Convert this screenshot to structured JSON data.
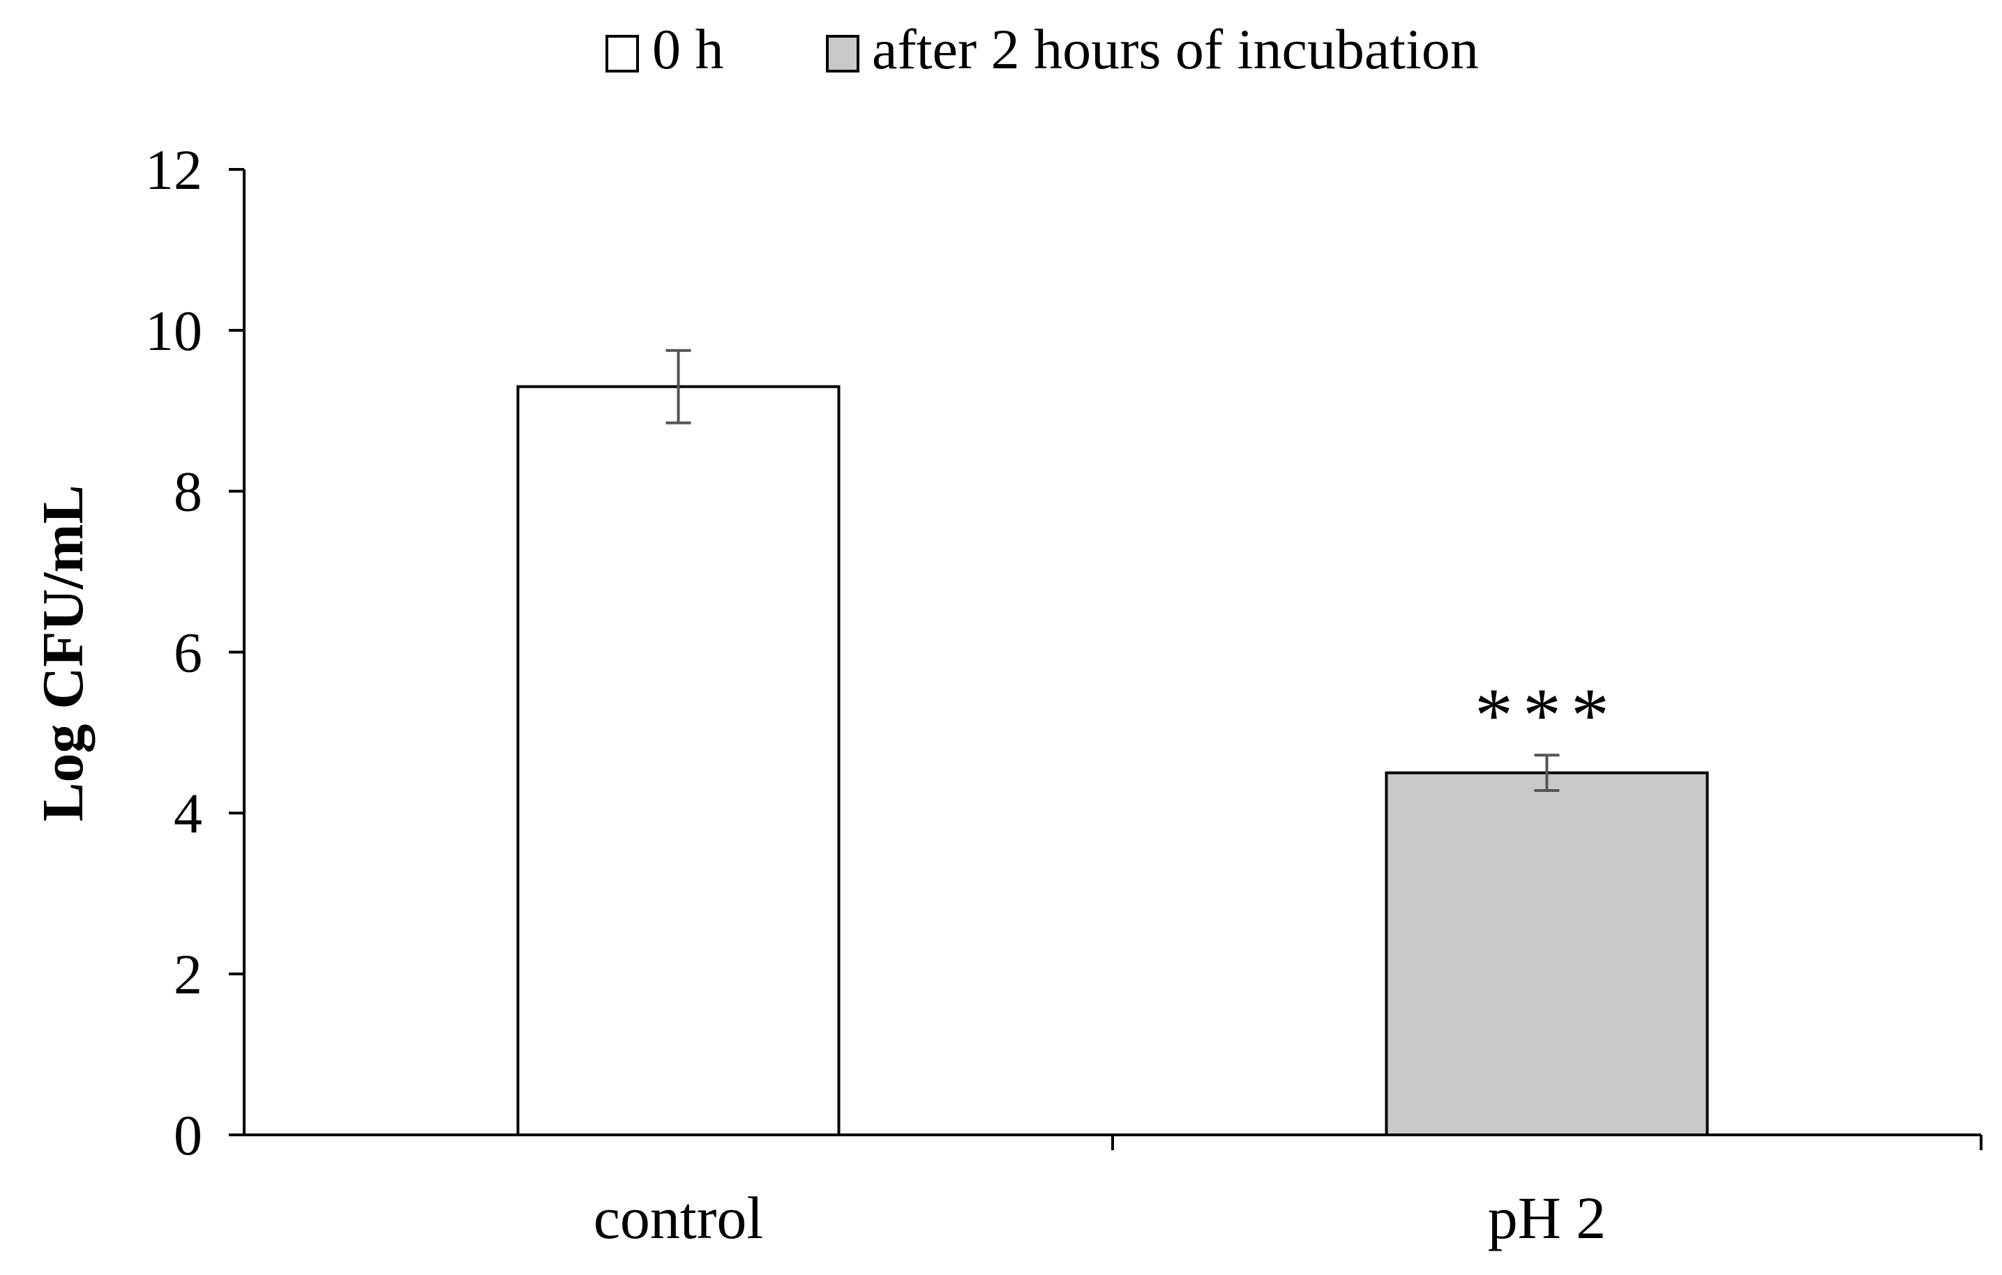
{
  "chart_data": {
    "type": "bar",
    "title": "",
    "xlabel": "",
    "ylabel": "Log CFU/mL",
    "ylim": [
      0,
      12
    ],
    "yticks": [
      "0",
      "2",
      "4",
      "6",
      "8",
      "10",
      "12"
    ],
    "grid": false,
    "legend_position": "top-center",
    "categories": [
      "control",
      "pH 2"
    ],
    "values": [
      9.3,
      4.5
    ],
    "errors": [
      0.45,
      0.22
    ],
    "bar_series": [
      "0 h",
      "after 2 hours of incubation"
    ],
    "series": [
      {
        "name": "0 h",
        "color": "#ffffff"
      },
      {
        "name": "after 2 hours of incubation",
        "color": "#c8c8c8"
      }
    ],
    "annotations": [
      {
        "category": "pH 2",
        "text": "***"
      }
    ]
  }
}
